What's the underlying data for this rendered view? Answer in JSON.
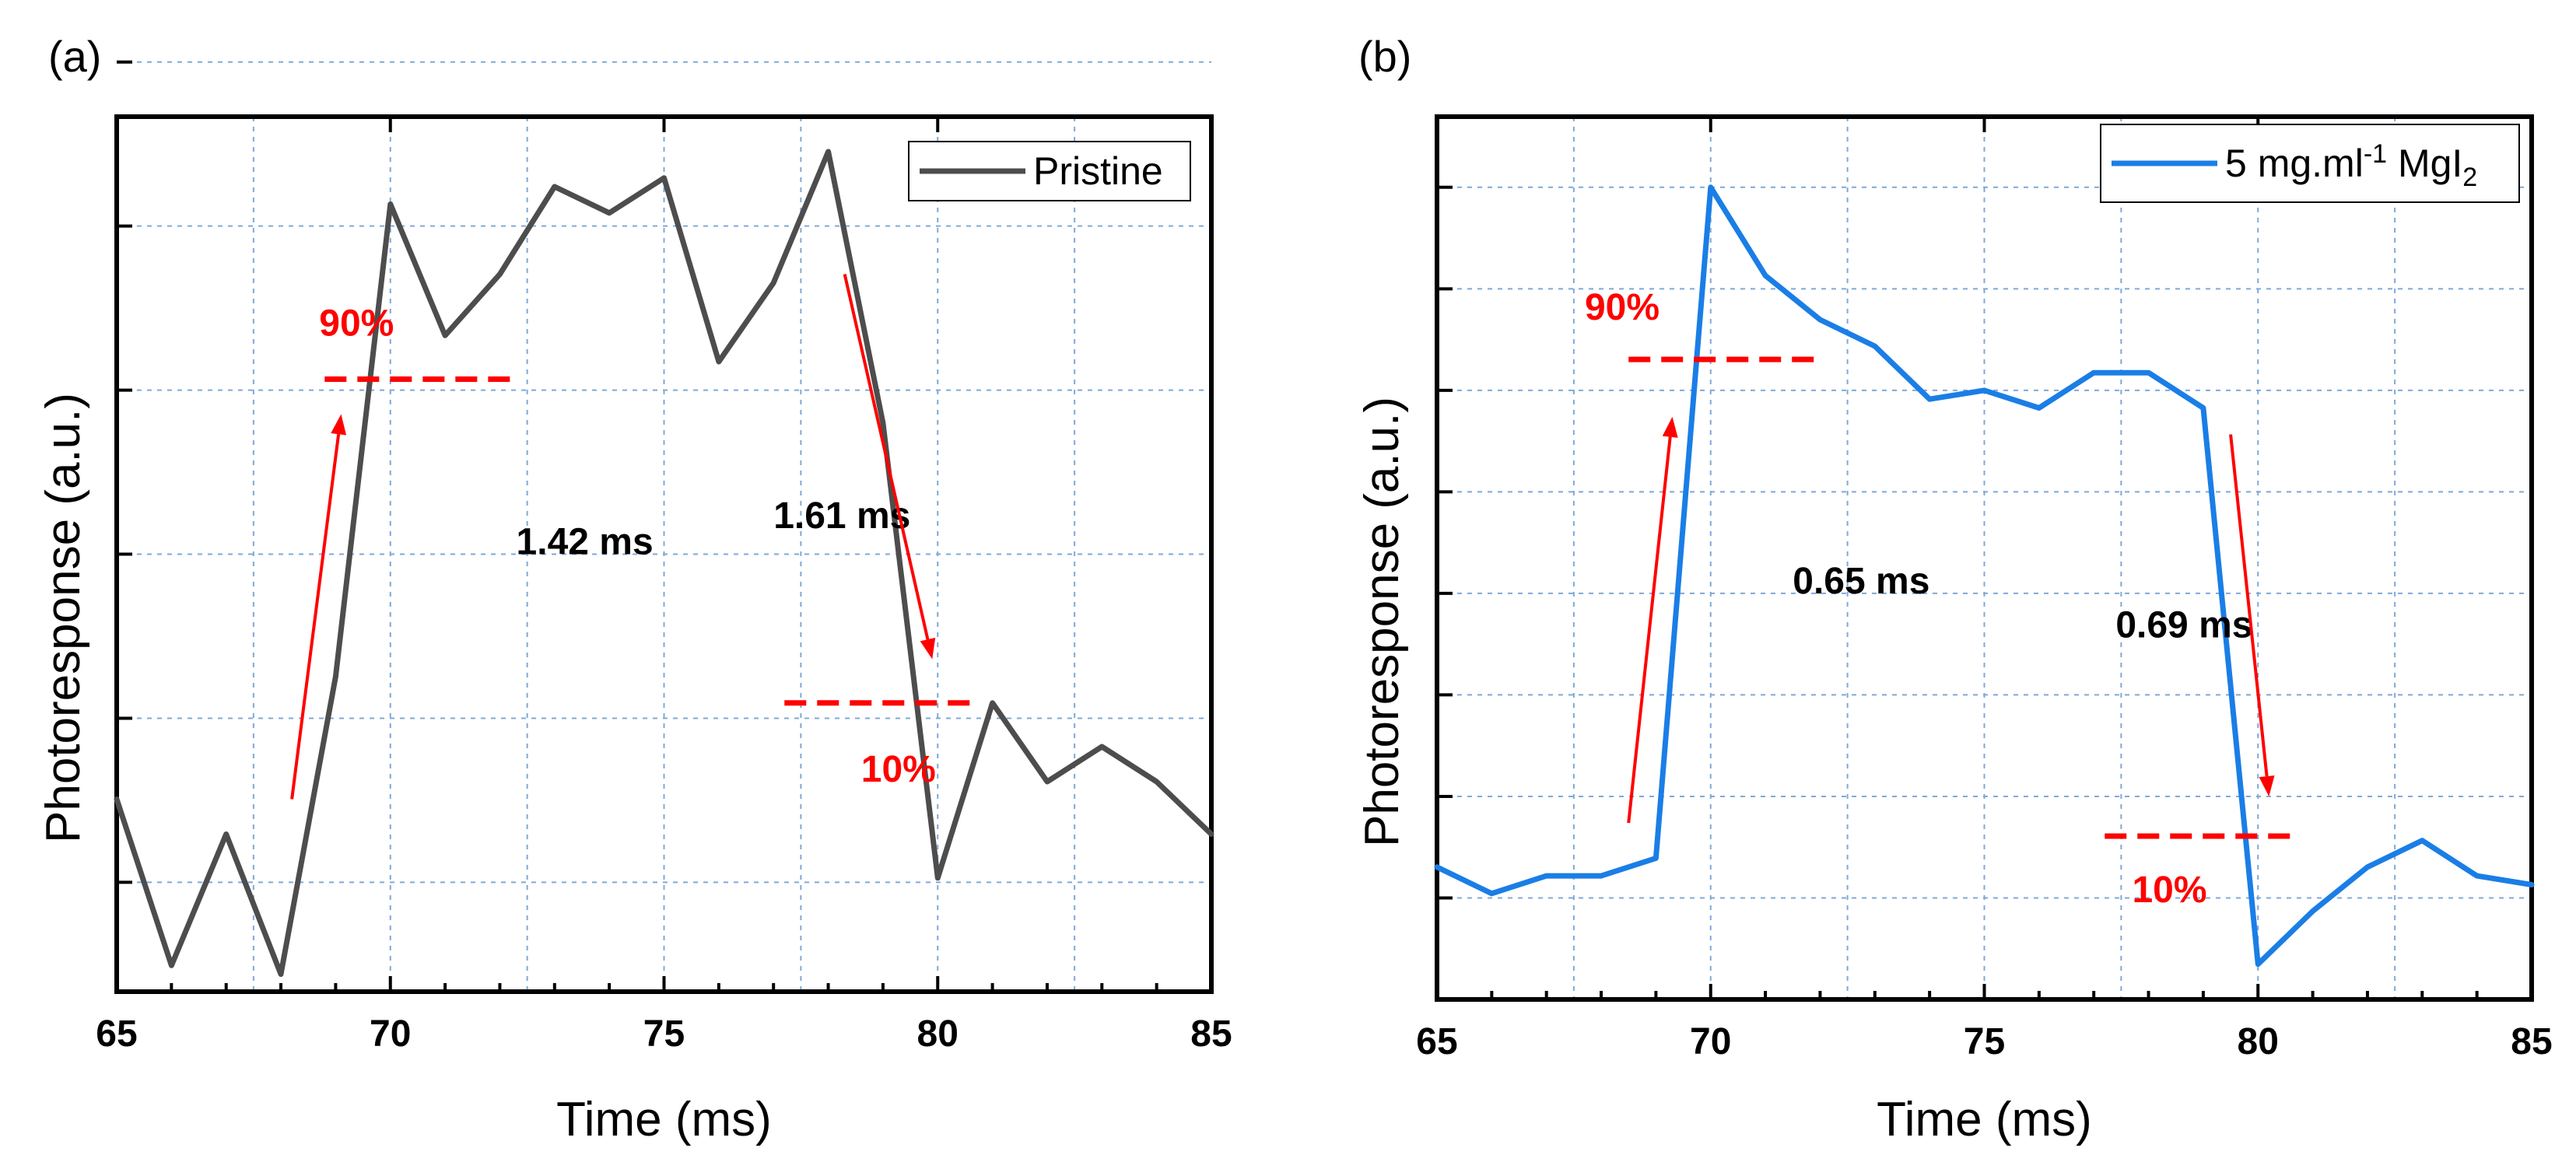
{
  "chart_data": [
    {
      "type": "line",
      "panel_label": "(a)",
      "xlabel": "Time (ms)",
      "ylabel": "Photoresponse (a.u.)",
      "xlim": [
        65,
        85
      ],
      "ylim": [
        0,
        1
      ],
      "x_ticks": [
        65,
        70,
        75,
        80,
        85
      ],
      "x_tick_labels": [
        "65",
        "70",
        "75",
        "80",
        "85"
      ],
      "y_tick_values": [
        0.125,
        0.3125,
        0.5,
        0.6875,
        0.875,
        1.0625
      ],
      "y_tick_labels": [],
      "grid": true,
      "legend": {
        "position": "top-right",
        "entries": [
          "Pristine"
        ]
      },
      "series": [
        {
          "name": "Pristine",
          "color": "#4d4d4d",
          "x": [
            65,
            66,
            67,
            68,
            69,
            70,
            71,
            72,
            73,
            74,
            75,
            76,
            77,
            78,
            79,
            80,
            81,
            82,
            83,
            84,
            85
          ],
          "values": [
            0.22,
            0.03,
            0.18,
            0.02,
            0.36,
            0.9,
            0.75,
            0.82,
            0.92,
            0.89,
            0.93,
            0.72,
            0.81,
            0.96,
            0.65,
            0.13,
            0.33,
            0.24,
            0.28,
            0.24,
            0.18
          ]
        }
      ],
      "annotations": {
        "upper_pct": {
          "text": "90%",
          "level": 0.7,
          "x_range": [
            68.8,
            72.3
          ],
          "text_x": 68.7,
          "text_y": 0.75
        },
        "lower_pct": {
          "text": "10%",
          "level": 0.33,
          "x_range": [
            77.2,
            80.7
          ],
          "text_x": 78.6,
          "text_y": 0.24
        },
        "rise_time": {
          "text": "1.42 ms",
          "x": 72.3,
          "y": 0.5
        },
        "fall_time": {
          "text": "1.61 ms",
          "x": 77.0,
          "y": 0.53
        },
        "rise_arrow": {
          "from": [
            68.2,
            0.22
          ],
          "to": [
            69.1,
            0.66
          ]
        },
        "fall_arrow": {
          "from": [
            78.3,
            0.82
          ],
          "to": [
            79.9,
            0.38
          ]
        }
      }
    },
    {
      "type": "line",
      "panel_label": "(b)",
      "xlabel": "Time (ms)",
      "ylabel": "Photoresponse (a.u.)",
      "xlim": [
        65,
        85
      ],
      "ylim": [
        0,
        1
      ],
      "x_ticks": [
        65,
        70,
        75,
        80,
        85
      ],
      "x_tick_labels": [
        "65",
        "70",
        "75",
        "80",
        "85"
      ],
      "y_tick_values": [
        0.115,
        0.23,
        0.345,
        0.46,
        0.575,
        0.69,
        0.805,
        0.92
      ],
      "y_tick_labels": [],
      "grid": true,
      "legend": {
        "position": "top-right",
        "entries": [
          "5 mg.ml-1 MgI2"
        ],
        "entry_main": "5 mg.ml",
        "entry_sup": "-1",
        "entry_mid": " MgI",
        "entry_sub": "2"
      },
      "series": [
        {
          "name": "5 mg.ml-1 MgI2",
          "color": "#1a7ee6",
          "x": [
            65,
            66,
            67,
            68,
            69,
            70,
            71,
            72,
            73,
            74,
            75,
            76,
            77,
            78,
            79,
            80,
            81,
            82,
            83,
            84,
            85
          ],
          "values": [
            0.15,
            0.12,
            0.14,
            0.14,
            0.16,
            0.92,
            0.82,
            0.77,
            0.74,
            0.68,
            0.69,
            0.67,
            0.71,
            0.71,
            0.67,
            0.04,
            0.1,
            0.15,
            0.18,
            0.14,
            0.13
          ]
        }
      ],
      "annotations": {
        "upper_pct": {
          "text": "90%",
          "level": 0.725,
          "x_range": [
            68.5,
            72.0
          ],
          "text_x": 67.7,
          "text_y": 0.77
        },
        "lower_pct": {
          "text": "10%",
          "level": 0.185,
          "x_range": [
            77.2,
            80.7
          ],
          "text_x": 77.7,
          "text_y": 0.11
        },
        "rise_time": {
          "text": "0.65 ms",
          "x": 71.5,
          "y": 0.46
        },
        "fall_time": {
          "text": "0.69 ms",
          "x": 77.4,
          "y": 0.41
        },
        "rise_arrow": {
          "from": [
            68.5,
            0.2
          ],
          "to": [
            69.3,
            0.66
          ]
        },
        "fall_arrow": {
          "from": [
            79.5,
            0.64
          ],
          "to": [
            80.2,
            0.23
          ]
        }
      }
    }
  ]
}
